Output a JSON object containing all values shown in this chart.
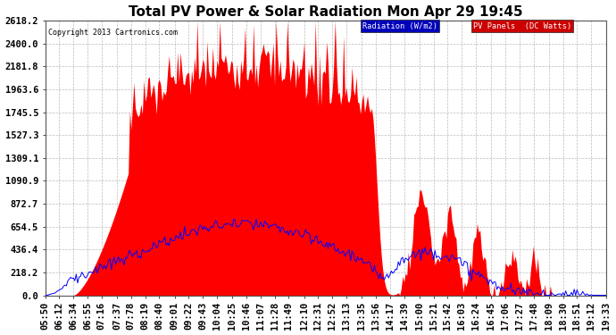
{
  "title": "Total PV Power & Solar Radiation Mon Apr 29 19:45",
  "copyright": "Copyright 2013 Cartronics.com",
  "legend_radiation": "Radiation (W/m2)",
  "legend_pv": "PV Panels  (DC Watts)",
  "yticks": [
    0.0,
    218.2,
    436.4,
    654.5,
    872.7,
    1090.9,
    1309.1,
    1527.3,
    1745.5,
    1963.6,
    2181.8,
    2400.0,
    2618.2
  ],
  "ymax": 2618.2,
  "bg_color": "#ffffff",
  "plot_bg_color": "#ffffff",
  "grid_color": "#aaaaaa",
  "fill_color": "#ff0000",
  "line_color": "#0000ff",
  "title_fontsize": 11,
  "tick_fontsize": 7.5,
  "xtick_labels": [
    "05:50",
    "06:12",
    "06:34",
    "06:55",
    "07:16",
    "07:37",
    "07:78",
    "08:19",
    "08:40",
    "09:01",
    "09:22",
    "09:43",
    "10:04",
    "10:25",
    "10:46",
    "11:07",
    "11:28",
    "11:49",
    "12:10",
    "12:31",
    "12:52",
    "13:13",
    "13:35",
    "13:56",
    "14:17",
    "14:39",
    "15:00",
    "15:21",
    "15:42",
    "16:03",
    "16:24",
    "16:45",
    "17:06",
    "17:27",
    "17:48",
    "18:09",
    "18:30",
    "18:51",
    "19:12",
    "19:33"
  ]
}
